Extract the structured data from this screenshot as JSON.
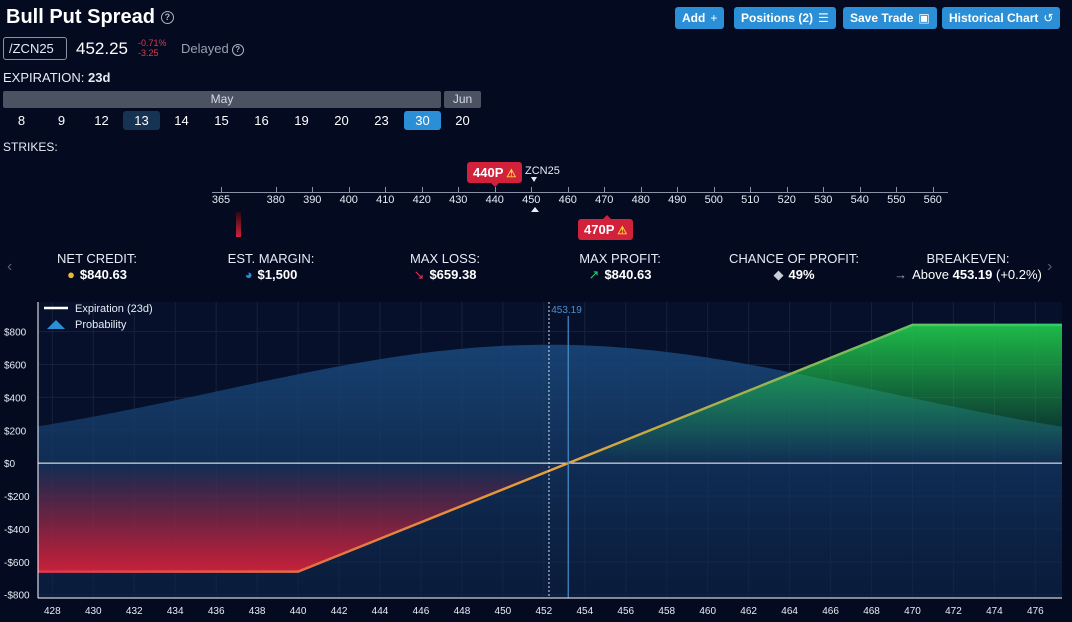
{
  "header": {
    "title": "Bull Put Spread",
    "help": "?",
    "buttons": [
      {
        "label": "Add",
        "icon": "+"
      },
      {
        "label": "Positions (2)",
        "icon": "☰"
      },
      {
        "label": "Save Trade",
        "icon": "▣"
      },
      {
        "label": "Historical Chart",
        "icon": "↺"
      }
    ]
  },
  "quote": {
    "symbol": "/ZCN25",
    "price": "452.25",
    "change_pct": "-0.71%",
    "change_abs": "-3.25",
    "delayed": "Delayed"
  },
  "expiration": {
    "label": "EXPIRATION:",
    "value": "23d",
    "months": [
      "May",
      "Jun"
    ],
    "days": [
      "8",
      "9",
      "12",
      "13",
      "14",
      "15",
      "16",
      "19",
      "20",
      "23",
      "30",
      "20"
    ],
    "highlighted_day": "13",
    "selected_day": "30"
  },
  "strikes": {
    "label": "STRIKES:",
    "ticks": [
      "365",
      "380",
      "390",
      "400",
      "410",
      "420",
      "430",
      "440",
      "450",
      "460",
      "470",
      "480",
      "490",
      "500",
      "510",
      "520",
      "530",
      "540",
      "550",
      "560"
    ],
    "underlying_label": "ZCN25",
    "short_put": "440P",
    "long_put": "470P",
    "warn_icon": "⚠"
  },
  "metrics": [
    {
      "label": "NET CREDIT:",
      "value": "$840.63",
      "icon": "coins-icon",
      "glyph": "●",
      "color": "#e8b931"
    },
    {
      "label": "EST. MARGIN:",
      "value": "$1,500",
      "icon": "pie-icon",
      "glyph": "◕",
      "color": "#2a8fd6"
    },
    {
      "label": "MAX LOSS:",
      "value": "$659.38",
      "icon": "arrow-down-icon",
      "glyph": "↘",
      "color": "#e0364f"
    },
    {
      "label": "MAX PROFIT:",
      "value": "$840.63",
      "icon": "arrow-up-icon",
      "glyph": "↗",
      "color": "#2ecc71"
    },
    {
      "label": "CHANCE OF PROFIT:",
      "value": "49%",
      "icon": "dice-icon",
      "glyph": "◆",
      "color": "#c9cfd8"
    },
    {
      "label": "BREAKEVEN:",
      "value_prefix": "Above",
      "value": "453.19",
      "value_suffix": "(+0.2%)",
      "icon": "arrow-right-icon",
      "glyph": "→",
      "color": "#98a2b3"
    }
  ],
  "nav": {
    "prev": "‹",
    "next": "›"
  },
  "chart_data": {
    "type": "line",
    "legend": [
      {
        "name": "Expiration (23d)",
        "color": "#ffffff"
      },
      {
        "name": "Probability",
        "color": "#2a8fd6"
      }
    ],
    "breakeven_label": "453.19",
    "x_ticks": [
      428,
      430,
      432,
      434,
      436,
      438,
      440,
      442,
      444,
      446,
      448,
      450,
      452,
      454,
      456,
      458,
      460,
      462,
      464,
      466,
      468,
      470,
      472,
      474,
      476
    ],
    "y_ticks": [
      800,
      600,
      400,
      200,
      0,
      -200,
      -400,
      -600,
      -800
    ],
    "y_tick_labels": [
      "$800",
      "$600",
      "$400",
      "$200",
      "$0",
      "-$200",
      "-$400",
      "-$600",
      "-$800"
    ],
    "xlim": [
      427.3,
      477.3
    ],
    "ylim": [
      -820,
      980
    ],
    "series": [
      {
        "name": "Expiration (23d)",
        "x": [
          427.3,
          440,
          470,
          477.3
        ],
        "y": [
          -659.38,
          -659.38,
          840.63,
          840.63
        ]
      }
    ],
    "probability_peak_x": 452.25,
    "current_price": 452.25,
    "breakeven": 453.19
  }
}
